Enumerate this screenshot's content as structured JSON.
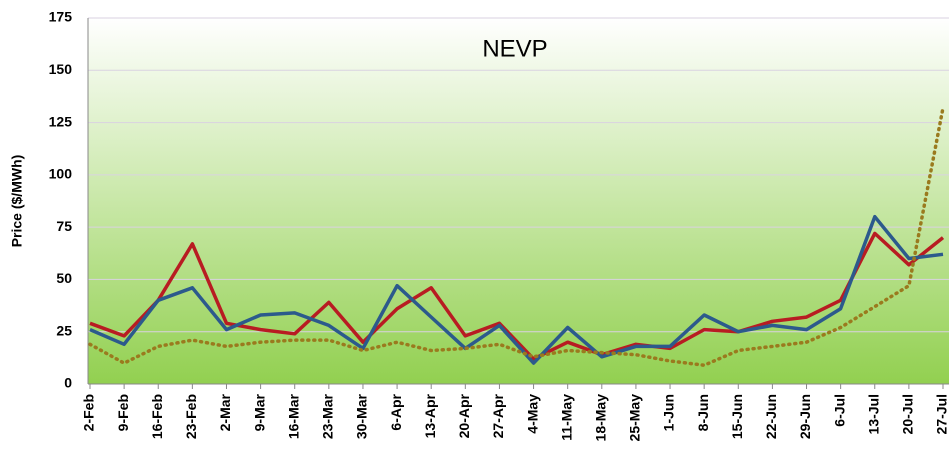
{
  "chart_data": {
    "type": "line",
    "title": "NEVP",
    "y_label": "Price ($/MWh)",
    "categories": [
      "2-Feb",
      "9-Feb",
      "16-Feb",
      "23-Feb",
      "2-Mar",
      "9-Mar",
      "16-Mar",
      "23-Mar",
      "30-Mar",
      "6-Apr",
      "13-Apr",
      "20-Apr",
      "27-Apr",
      "4-May",
      "11-May",
      "18-May",
      "25-May",
      "1-Jun",
      "8-Jun",
      "15-Jun",
      "22-Jun",
      "29-Jun",
      "6-Jul",
      "13-Jul",
      "20-Jul",
      "27-Jul"
    ],
    "series": [
      {
        "color": "#b81c22",
        "style": "solid",
        "values": [
          29,
          23,
          40,
          67,
          29,
          26,
          24,
          39,
          20,
          36,
          46,
          23,
          29,
          12,
          20,
          14,
          19,
          17,
          26,
          25,
          30,
          32,
          40,
          72,
          57,
          70
        ]
      },
      {
        "color": "#2c5a8c",
        "style": "solid",
        "values": [
          26,
          19,
          40,
          46,
          26,
          33,
          34,
          28,
          17,
          47,
          32,
          17,
          28,
          10,
          27,
          13,
          18,
          18,
          33,
          25,
          28,
          26,
          36,
          80,
          60,
          62
        ]
      },
      {
        "color": "#9a7a1e",
        "style": "dotted",
        "values": [
          19,
          10,
          18,
          21,
          18,
          20,
          21,
          21,
          16,
          20,
          16,
          17,
          19,
          13,
          16,
          15,
          14,
          11,
          9,
          16,
          18,
          20,
          27,
          37,
          47,
          132
        ]
      }
    ],
    "ylim": [
      0,
      175
    ],
    "yticks": [
      0,
      25,
      50,
      75,
      100,
      125,
      150,
      175
    ],
    "grid": true
  }
}
